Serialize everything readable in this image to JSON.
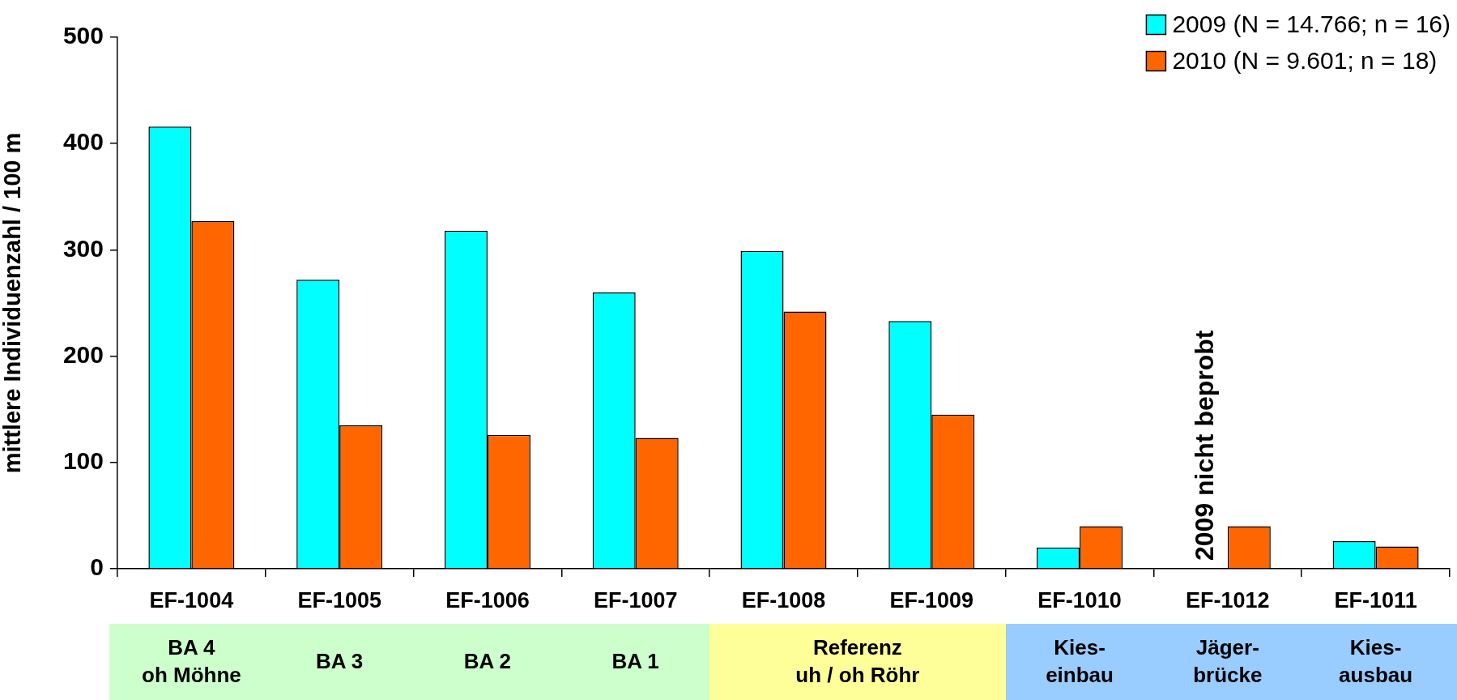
{
  "chart_data": {
    "type": "bar",
    "ylabel": "mittlere Individuenzahl / 100 m",
    "categories": [
      "EF-1004",
      "EF-1005",
      "EF-1006",
      "EF-1007",
      "EF-1008",
      "EF-1009",
      "EF-1010",
      "EF-1012",
      "EF-1011"
    ],
    "series": [
      {
        "name": "2009 (N = 14.766; n = 16)",
        "color": "#00ffff",
        "values": [
          416,
          272,
          318,
          260,
          299,
          233,
          20,
          null,
          26
        ]
      },
      {
        "name": "2010 (N = 9.601; n = 18)",
        "color": "#ff6600",
        "values": [
          327,
          135,
          126,
          123,
          242,
          145,
          40,
          40,
          21
        ]
      }
    ],
    "ylim": [
      0,
      500
    ],
    "yticks": [
      0,
      100,
      200,
      300,
      400,
      500
    ],
    "grid": false,
    "legend": "top right",
    "annotations": [
      {
        "text": "2009 nicht beprobt",
        "x": "EF-1012",
        "y": 0
      },
      "BA 4\noh Möhne",
      "BA 3",
      "BA 2",
      "BA 1",
      "Referenz\nuh / oh Röhr",
      "Kies-\neinbau",
      "Jäger-\nbrücke",
      "Kies-\nausbau"
    ]
  }
}
